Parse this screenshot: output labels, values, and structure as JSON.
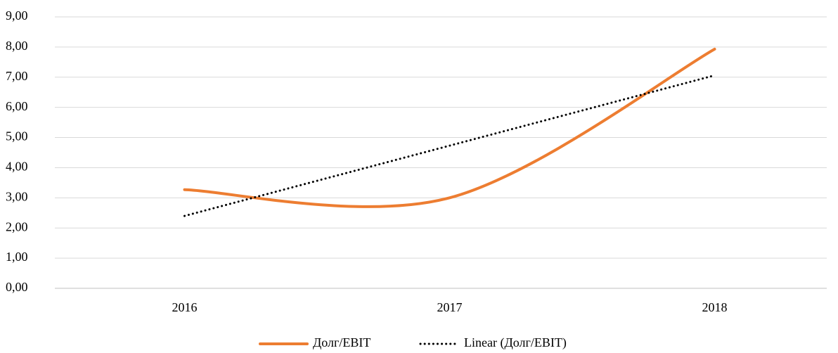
{
  "chart_data": {
    "type": "line",
    "categories": [
      "2016",
      "2017",
      "2018"
    ],
    "series": [
      {
        "name": "Долг/EBIT",
        "color": "#ed7d31",
        "values": [
          3.27,
          3.0,
          7.93
        ],
        "smooth": true
      },
      {
        "name": "Linear (Долг/EBIT)",
        "color": "#000000",
        "values": [
          2.4,
          4.73,
          7.06
        ],
        "dotted": true
      }
    ],
    "ylim": [
      0,
      9
    ],
    "yticks": [
      {
        "value": 0,
        "label": "0,00"
      },
      {
        "value": 1,
        "label": "1,00"
      },
      {
        "value": 2,
        "label": "2,00"
      },
      {
        "value": 3,
        "label": "3,00"
      },
      {
        "value": 4,
        "label": "4,00"
      },
      {
        "value": 5,
        "label": "5,00"
      },
      {
        "value": 6,
        "label": "6,00"
      },
      {
        "value": 7,
        "label": "7,00"
      },
      {
        "value": 8,
        "label": "8,00"
      },
      {
        "value": 9,
        "label": "9,00"
      }
    ],
    "grid": true,
    "legend": "bottom"
  }
}
